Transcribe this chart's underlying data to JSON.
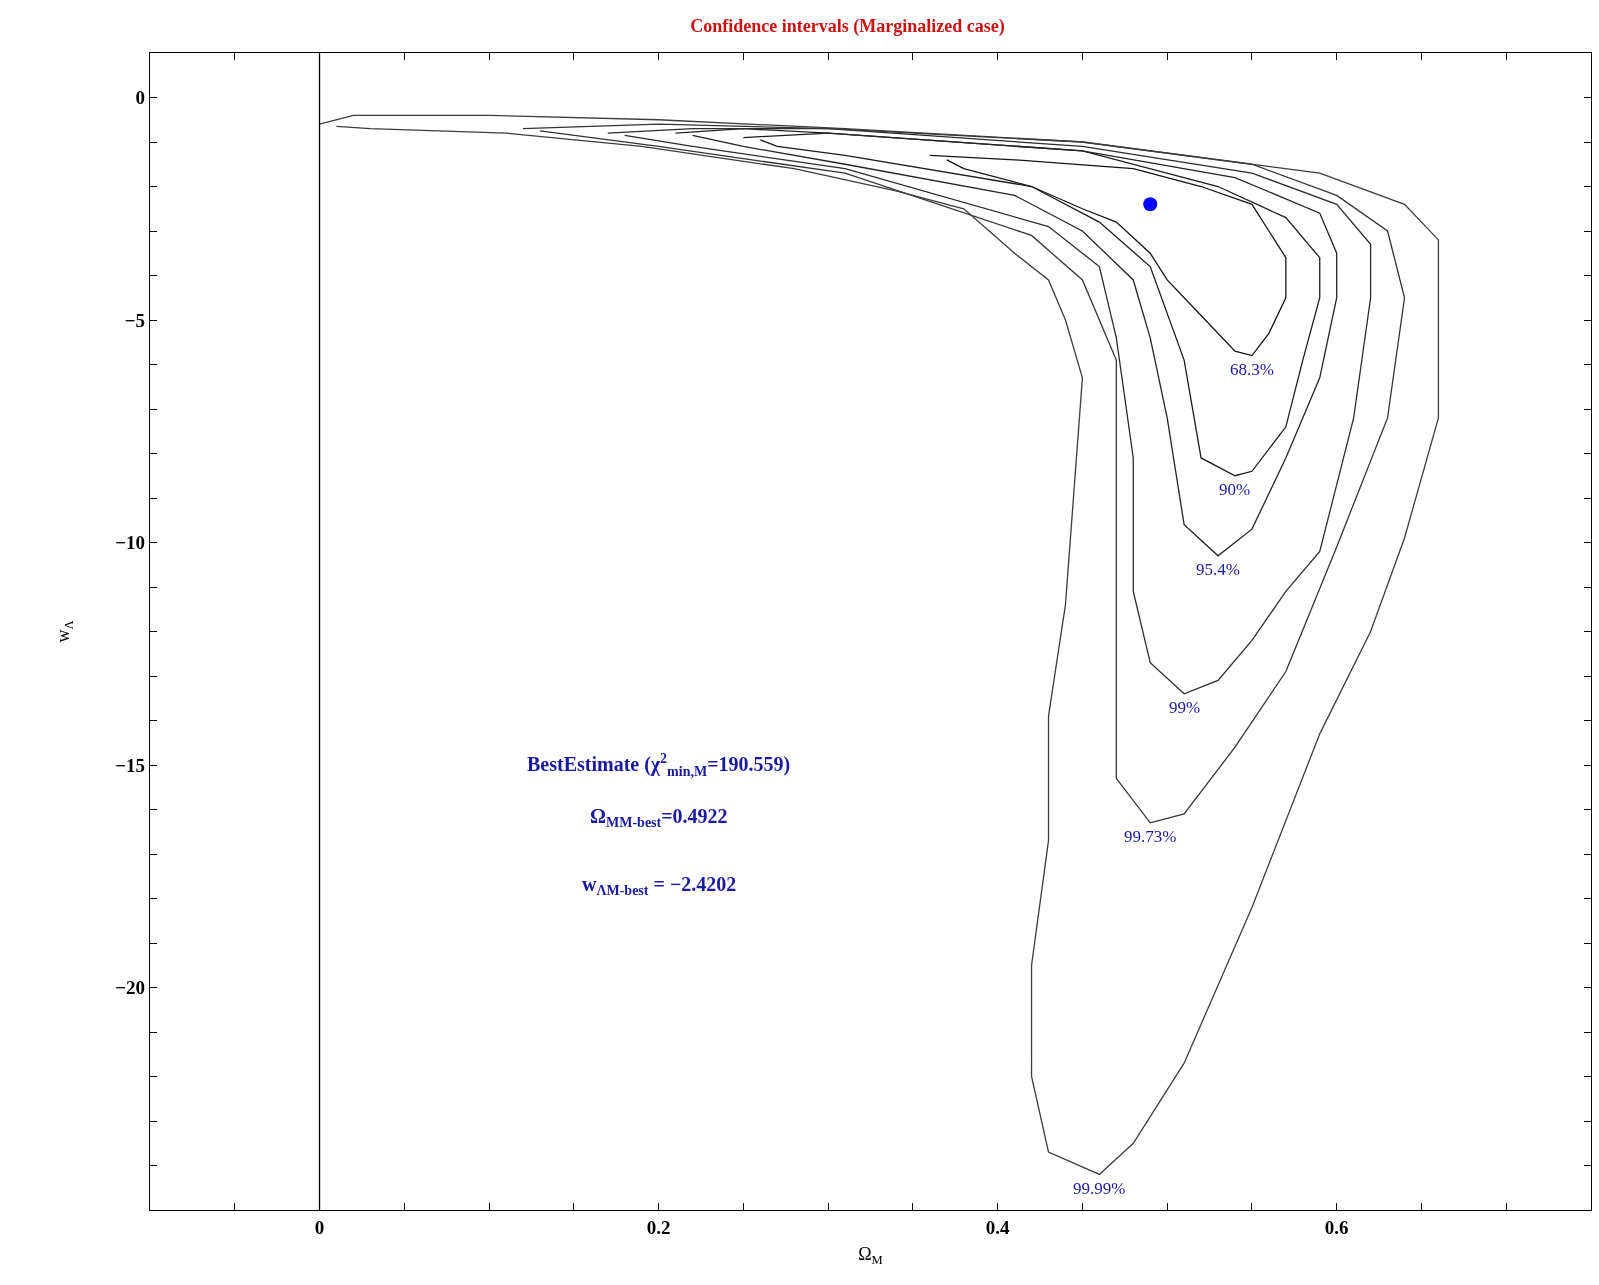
{
  "chart_data": {
    "type": "line",
    "title": "Confidence intervals (Marginalized case)",
    "xlabel": "Ω$_{M}$",
    "ylabel": "w$_{Λ}$",
    "xlim": [
      -0.1,
      0.75
    ],
    "ylim": [
      -25,
      1
    ],
    "xticks": [
      {
        "value": -0.05,
        "label": null
      },
      {
        "value": 0,
        "label": "0"
      },
      {
        "value": 0.05,
        "label": null
      },
      {
        "value": 0.1,
        "label": null
      },
      {
        "value": 0.15,
        "label": null
      },
      {
        "value": 0.2,
        "label": "0.2"
      },
      {
        "value": 0.25,
        "label": null
      },
      {
        "value": 0.3,
        "label": null
      },
      {
        "value": 0.35,
        "label": null
      },
      {
        "value": 0.4,
        "label": "0.4"
      },
      {
        "value": 0.45,
        "label": null
      },
      {
        "value": 0.5,
        "label": null
      },
      {
        "value": 0.55,
        "label": null
      },
      {
        "value": 0.6,
        "label": "0.6"
      },
      {
        "value": 0.65,
        "label": null
      },
      {
        "value": 0.7,
        "label": null
      }
    ],
    "yticks": [
      {
        "value": 0,
        "label": "0"
      },
      {
        "value": -1,
        "label": null
      },
      {
        "value": -2,
        "label": null
      },
      {
        "value": -3,
        "label": null
      },
      {
        "value": -4,
        "label": null
      },
      {
        "value": -5,
        "label": "−5"
      },
      {
        "value": -6,
        "label": null
      },
      {
        "value": -7,
        "label": null
      },
      {
        "value": -8,
        "label": null
      },
      {
        "value": -9,
        "label": null
      },
      {
        "value": -10,
        "label": "−10"
      },
      {
        "value": -11,
        "label": null
      },
      {
        "value": -12,
        "label": null
      },
      {
        "value": -13,
        "label": null
      },
      {
        "value": -14,
        "label": null
      },
      {
        "value": -15,
        "label": "−15"
      },
      {
        "value": -16,
        "label": null
      },
      {
        "value": -17,
        "label": null
      },
      {
        "value": -18,
        "label": null
      },
      {
        "value": -19,
        "label": null
      },
      {
        "value": -20,
        "label": "−20"
      },
      {
        "value": -21,
        "label": null
      },
      {
        "value": -22,
        "label": null
      },
      {
        "value": -23,
        "label": null
      },
      {
        "value": -24,
        "label": null
      }
    ],
    "legend": false,
    "line_style": "solid",
    "marker": "none",
    "ref_lines": [
      {
        "axis": "x",
        "value": 0,
        "color": "#000000"
      }
    ],
    "series": [
      {
        "name": "68.3%",
        "color": "#141414",
        "x": [
          0.36,
          0.41,
          0.48,
          0.52,
          0.55,
          0.56,
          0.57,
          0.57,
          0.56,
          0.55,
          0.54,
          0.52,
          0.5,
          0.49,
          0.47,
          0.45,
          0.42,
          0.38,
          0.37
        ],
        "values": [
          -1.3,
          -1.4,
          -1.6,
          -2.0,
          -2.4,
          -3.0,
          -3.6,
          -4.5,
          -5.3,
          -5.8,
          -5.7,
          -4.9,
          -4.1,
          -3.5,
          -2.8,
          -2.5,
          -2.0,
          -1.6,
          -1.4
        ]
      },
      {
        "name": "90%",
        "color": "#1c1c1c",
        "x": [
          0.25,
          0.3,
          0.45,
          0.53,
          0.57,
          0.59,
          0.59,
          0.58,
          0.57,
          0.55,
          0.54,
          0.52,
          0.51,
          0.49,
          0.46,
          0.42,
          0.31,
          0.27,
          0.26
        ],
        "values": [
          -0.9,
          -0.8,
          -1.2,
          -2.0,
          -2.7,
          -3.6,
          -4.5,
          -5.9,
          -7.4,
          -8.4,
          -8.5,
          -8.1,
          -5.9,
          -3.8,
          -2.8,
          -2.0,
          -1.3,
          -1.1,
          -0.95
        ]
      },
      {
        "name": "95.4%",
        "color": "#242424",
        "x": [
          0.21,
          0.25,
          0.3,
          0.45,
          0.54,
          0.59,
          0.6,
          0.6,
          0.59,
          0.57,
          0.55,
          0.53,
          0.51,
          0.5,
          0.49,
          0.48,
          0.45,
          0.41,
          0.31,
          0.25,
          0.22
        ],
        "values": [
          -0.8,
          -0.7,
          -0.8,
          -1.2,
          -1.8,
          -2.6,
          -3.5,
          -4.5,
          -6.3,
          -8.1,
          -9.7,
          -10.3,
          -9.6,
          -7.2,
          -5.4,
          -4.1,
          -3.0,
          -2.2,
          -1.5,
          -1.1,
          -0.85
        ]
      },
      {
        "name": "99%",
        "color": "#2c2c2c",
        "x": [
          0.17,
          0.22,
          0.3,
          0.45,
          0.55,
          0.6,
          0.62,
          0.62,
          0.61,
          0.59,
          0.57,
          0.55,
          0.53,
          0.51,
          0.49,
          0.48,
          0.48,
          0.47,
          0.46,
          0.43,
          0.31,
          0.22,
          0.18
        ],
        "values": [
          -0.8,
          -0.7,
          -0.7,
          -1.1,
          -1.7,
          -2.4,
          -3.3,
          -4.5,
          -7.2,
          -10.2,
          -11.1,
          -12.2,
          -13.1,
          -13.4,
          -12.7,
          -11.1,
          -8.1,
          -5.4,
          -3.8,
          -2.9,
          -1.6,
          -1.1,
          -0.85
        ]
      },
      {
        "name": "99.73%",
        "color": "#343434",
        "x": [
          0.12,
          0.2,
          0.3,
          0.45,
          0.55,
          0.6,
          0.63,
          0.64,
          0.63,
          0.6,
          0.57,
          0.54,
          0.51,
          0.49,
          0.47,
          0.47,
          0.47,
          0.47,
          0.45,
          0.42,
          0.31,
          0.2,
          0.13
        ],
        "values": [
          -0.7,
          -0.6,
          -0.7,
          -1.0,
          -1.5,
          -2.2,
          -3.0,
          -4.5,
          -7.2,
          -10.1,
          -12.9,
          -14.6,
          -16.1,
          -16.3,
          -15.3,
          -13.4,
          -10.1,
          -5.9,
          -4.1,
          -3.1,
          -1.7,
          -1.1,
          -0.75
        ]
      },
      {
        "name": "99.99%",
        "color": "#3c3c3c",
        "x": [
          0.0,
          0.02,
          0.05,
          0.1,
          0.2,
          0.31,
          0.45,
          0.59,
          0.64,
          0.66,
          0.66,
          0.66,
          0.64,
          0.62,
          0.59,
          0.55,
          0.51,
          0.48,
          0.46,
          0.43,
          0.42,
          0.42,
          0.43,
          0.43,
          0.44,
          0.45,
          0.44,
          0.43,
          0.41,
          0.38,
          0.34,
          0.28,
          0.19,
          0.11,
          0.03,
          0.01
        ],
        "values": [
          -0.6,
          -0.4,
          -0.4,
          -0.4,
          -0.5,
          -0.7,
          -1.0,
          -1.7,
          -2.4,
          -3.2,
          -4.6,
          -7.2,
          -9.9,
          -12.0,
          -14.3,
          -18.2,
          -21.7,
          -23.5,
          -24.2,
          -23.7,
          -22.0,
          -19.5,
          -16.7,
          -13.9,
          -11.4,
          -6.3,
          -5.0,
          -4.1,
          -3.5,
          -2.5,
          -2.1,
          -1.6,
          -1.1,
          -0.8,
          -0.7,
          -0.65
        ]
      },
      {
        "type": "scatter",
        "marker": "circle",
        "color": "#0000ff",
        "x": [
          0.49
        ],
        "values": [
          -2.4
        ]
      }
    ],
    "annotations": [
      "BestEstimate (χ$^{2}$$_{min,M}$=190.559)",
      "Ω$_{MM-best}$=0.4922",
      "w$_{ΛM-best}$ = −2.4202"
    ]
  }
}
